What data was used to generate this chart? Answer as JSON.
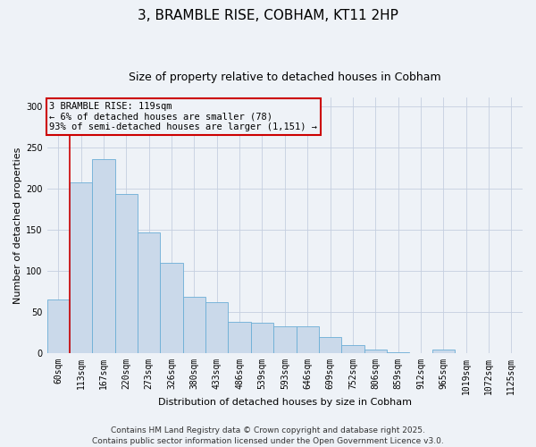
{
  "title": "3, BRAMBLE RISE, COBHAM, KT11 2HP",
  "subtitle": "Size of property relative to detached houses in Cobham",
  "xlabel": "Distribution of detached houses by size in Cobham",
  "ylabel": "Number of detached properties",
  "bar_labels": [
    "60sqm",
    "113sqm",
    "167sqm",
    "220sqm",
    "273sqm",
    "326sqm",
    "380sqm",
    "433sqm",
    "486sqm",
    "539sqm",
    "593sqm",
    "646sqm",
    "699sqm",
    "752sqm",
    "806sqm",
    "859sqm",
    "912sqm",
    "965sqm",
    "1019sqm",
    "1072sqm",
    "1125sqm"
  ],
  "bar_values": [
    65,
    207,
    235,
    193,
    147,
    110,
    68,
    62,
    38,
    37,
    32,
    32,
    19,
    10,
    4,
    1,
    0,
    4,
    0,
    0,
    0
  ],
  "bar_color": "#cad9ea",
  "bar_edge_color": "#6baed6",
  "vline_x_idx": 1,
  "vline_color": "#cc0000",
  "ylim": [
    0,
    310
  ],
  "yticks": [
    0,
    50,
    100,
    150,
    200,
    250,
    300
  ],
  "annotation_title": "3 BRAMBLE RISE: 119sqm",
  "annotation_line1": "← 6% of detached houses are smaller (78)",
  "annotation_line2": "93% of semi-detached houses are larger (1,151) →",
  "annotation_box_color": "#cc0000",
  "footnote1": "Contains HM Land Registry data © Crown copyright and database right 2025.",
  "footnote2": "Contains public sector information licensed under the Open Government Licence v3.0.",
  "bg_color": "#eef2f7",
  "grid_color": "#c5cfe0",
  "title_fontsize": 11,
  "subtitle_fontsize": 9,
  "axis_label_fontsize": 8,
  "tick_fontsize": 7,
  "annotation_fontsize": 7.5,
  "footnote_fontsize": 6.5
}
